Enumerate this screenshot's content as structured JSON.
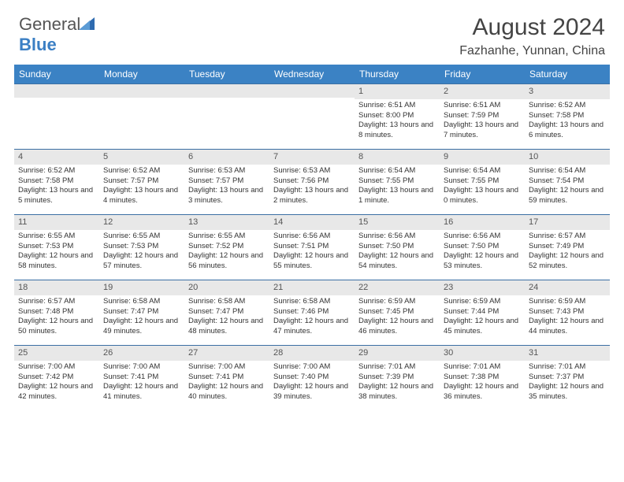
{
  "logo": {
    "part1": "General",
    "part2": "Blue"
  },
  "title": "August 2024",
  "location": "Fazhanhe, Yunnan, China",
  "colors": {
    "header_bg": "#3b82c4",
    "header_text": "#ffffff",
    "date_bg": "#e8e8e8",
    "border": "#3b6fa4",
    "text": "#333333",
    "logo_blue": "#3b7fc4"
  },
  "weekdays": [
    "Sunday",
    "Monday",
    "Tuesday",
    "Wednesday",
    "Thursday",
    "Friday",
    "Saturday"
  ],
  "layout": {
    "first_weekday": 4,
    "days_in_month": 31
  },
  "days": {
    "1": {
      "sunrise": "6:51 AM",
      "sunset": "8:00 PM",
      "daylight": "13 hours and 8 minutes."
    },
    "2": {
      "sunrise": "6:51 AM",
      "sunset": "7:59 PM",
      "daylight": "13 hours and 7 minutes."
    },
    "3": {
      "sunrise": "6:52 AM",
      "sunset": "7:58 PM",
      "daylight": "13 hours and 6 minutes."
    },
    "4": {
      "sunrise": "6:52 AM",
      "sunset": "7:58 PM",
      "daylight": "13 hours and 5 minutes."
    },
    "5": {
      "sunrise": "6:52 AM",
      "sunset": "7:57 PM",
      "daylight": "13 hours and 4 minutes."
    },
    "6": {
      "sunrise": "6:53 AM",
      "sunset": "7:57 PM",
      "daylight": "13 hours and 3 minutes."
    },
    "7": {
      "sunrise": "6:53 AM",
      "sunset": "7:56 PM",
      "daylight": "13 hours and 2 minutes."
    },
    "8": {
      "sunrise": "6:54 AM",
      "sunset": "7:55 PM",
      "daylight": "13 hours and 1 minute."
    },
    "9": {
      "sunrise": "6:54 AM",
      "sunset": "7:55 PM",
      "daylight": "13 hours and 0 minutes."
    },
    "10": {
      "sunrise": "6:54 AM",
      "sunset": "7:54 PM",
      "daylight": "12 hours and 59 minutes."
    },
    "11": {
      "sunrise": "6:55 AM",
      "sunset": "7:53 PM",
      "daylight": "12 hours and 58 minutes."
    },
    "12": {
      "sunrise": "6:55 AM",
      "sunset": "7:53 PM",
      "daylight": "12 hours and 57 minutes."
    },
    "13": {
      "sunrise": "6:55 AM",
      "sunset": "7:52 PM",
      "daylight": "12 hours and 56 minutes."
    },
    "14": {
      "sunrise": "6:56 AM",
      "sunset": "7:51 PM",
      "daylight": "12 hours and 55 minutes."
    },
    "15": {
      "sunrise": "6:56 AM",
      "sunset": "7:50 PM",
      "daylight": "12 hours and 54 minutes."
    },
    "16": {
      "sunrise": "6:56 AM",
      "sunset": "7:50 PM",
      "daylight": "12 hours and 53 minutes."
    },
    "17": {
      "sunrise": "6:57 AM",
      "sunset": "7:49 PM",
      "daylight": "12 hours and 52 minutes."
    },
    "18": {
      "sunrise": "6:57 AM",
      "sunset": "7:48 PM",
      "daylight": "12 hours and 50 minutes."
    },
    "19": {
      "sunrise": "6:58 AM",
      "sunset": "7:47 PM",
      "daylight": "12 hours and 49 minutes."
    },
    "20": {
      "sunrise": "6:58 AM",
      "sunset": "7:47 PM",
      "daylight": "12 hours and 48 minutes."
    },
    "21": {
      "sunrise": "6:58 AM",
      "sunset": "7:46 PM",
      "daylight": "12 hours and 47 minutes."
    },
    "22": {
      "sunrise": "6:59 AM",
      "sunset": "7:45 PM",
      "daylight": "12 hours and 46 minutes."
    },
    "23": {
      "sunrise": "6:59 AM",
      "sunset": "7:44 PM",
      "daylight": "12 hours and 45 minutes."
    },
    "24": {
      "sunrise": "6:59 AM",
      "sunset": "7:43 PM",
      "daylight": "12 hours and 44 minutes."
    },
    "25": {
      "sunrise": "7:00 AM",
      "sunset": "7:42 PM",
      "daylight": "12 hours and 42 minutes."
    },
    "26": {
      "sunrise": "7:00 AM",
      "sunset": "7:41 PM",
      "daylight": "12 hours and 41 minutes."
    },
    "27": {
      "sunrise": "7:00 AM",
      "sunset": "7:41 PM",
      "daylight": "12 hours and 40 minutes."
    },
    "28": {
      "sunrise": "7:00 AM",
      "sunset": "7:40 PM",
      "daylight": "12 hours and 39 minutes."
    },
    "29": {
      "sunrise": "7:01 AM",
      "sunset": "7:39 PM",
      "daylight": "12 hours and 38 minutes."
    },
    "30": {
      "sunrise": "7:01 AM",
      "sunset": "7:38 PM",
      "daylight": "12 hours and 36 minutes."
    },
    "31": {
      "sunrise": "7:01 AM",
      "sunset": "7:37 PM",
      "daylight": "12 hours and 35 minutes."
    }
  },
  "labels": {
    "sunrise": "Sunrise:",
    "sunset": "Sunset:",
    "daylight": "Daylight:"
  }
}
